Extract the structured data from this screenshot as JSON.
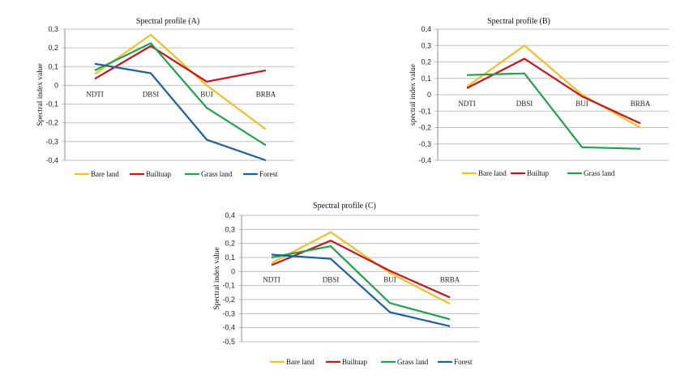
{
  "colors": {
    "Bare land": "#f0be2a",
    "Builtup": "#c4161c",
    "Grass land": "#22a04b",
    "Forest": "#1f5f9e"
  },
  "chart_data": [
    {
      "id": "A",
      "type": "line",
      "title": "Spectral profile (A)",
      "xlabel": "",
      "ylabel": "Spectral index value",
      "categories": [
        "NDTI",
        "DBSI",
        "BUI",
        "BRBA"
      ],
      "ylim": [
        -0.4,
        0.3
      ],
      "yticks": [
        0.3,
        0.2,
        0.1,
        0,
        -0.1,
        -0.2,
        -0.3,
        -0.4
      ],
      "ytick_labels": [
        "0,3",
        "0,2",
        "0,1",
        "0",
        "-0,1",
        "-0,2",
        "-0,3",
        "-0,4"
      ],
      "grid": true,
      "legend_position": "bottom",
      "series": [
        {
          "name": "Bare land",
          "legend_label": "Bare land",
          "values": [
            0.06,
            0.27,
            0.0,
            -0.235
          ]
        },
        {
          "name": "Builtup",
          "legend_label": "Builtuap",
          "values": [
            0.035,
            0.21,
            0.02,
            0.08
          ]
        },
        {
          "name": "Grass land",
          "legend_label": "Grass land",
          "values": [
            0.08,
            0.225,
            -0.12,
            -0.32
          ]
        },
        {
          "name": "Forest",
          "legend_label": "Forest",
          "values": [
            0.115,
            0.065,
            -0.29,
            -0.4
          ]
        }
      ]
    },
    {
      "id": "B",
      "type": "line",
      "title": "Spectral profile (B)",
      "xlabel": "",
      "ylabel": "spectral index value",
      "categories": [
        "NDTI",
        "DBSI",
        "BUI",
        "BRBA"
      ],
      "ylim": [
        -0.4,
        0.4
      ],
      "yticks": [
        0.4,
        0.3,
        0.2,
        0.1,
        0,
        -0.1,
        -0.2,
        -0.3,
        -0.4
      ],
      "ytick_labels": [
        "0,4",
        "0,3",
        "0,2",
        "0,1",
        "0",
        "-0,1",
        "-0,2",
        "-0,3",
        "-0,4"
      ],
      "grid": true,
      "legend_position": "bottom",
      "series": [
        {
          "name": "Bare land",
          "legend_label": "Bare land",
          "values": [
            0.05,
            0.3,
            0.0,
            -0.2
          ]
        },
        {
          "name": "Builtup",
          "legend_label": "Builtup",
          "values": [
            0.04,
            0.22,
            -0.01,
            -0.175
          ]
        },
        {
          "name": "Grass land",
          "legend_label": "Grass land",
          "values": [
            0.12,
            0.13,
            -0.32,
            -0.33
          ]
        }
      ]
    },
    {
      "id": "C",
      "type": "line",
      "title": "Spectral profile (C)",
      "xlabel": "",
      "ylabel": "Spectral index value",
      "categories": [
        "NDTI",
        "DBSI",
        "BUI",
        "BRBA"
      ],
      "ylim": [
        -0.5,
        0.4
      ],
      "yticks": [
        0.4,
        0.3,
        0.2,
        0.1,
        0,
        -0.1,
        -0.2,
        -0.3,
        -0.4,
        -0.5
      ],
      "ytick_labels": [
        "0,4",
        "0,3",
        "0,2",
        "0,1",
        "0",
        "-0,1",
        "-0,2",
        "-0,3",
        "-0,4",
        "-0,5"
      ],
      "grid": true,
      "legend_position": "bottom",
      "series": [
        {
          "name": "Bare land",
          "legend_label": "Bare land",
          "values": [
            0.06,
            0.28,
            -0.01,
            -0.23
          ]
        },
        {
          "name": "Builtup",
          "legend_label": "Builtuap",
          "values": [
            0.045,
            0.22,
            0.005,
            -0.185
          ]
        },
        {
          "name": "Grass land",
          "legend_label": "Grass land",
          "values": [
            0.1,
            0.18,
            -0.225,
            -0.34
          ]
        },
        {
          "name": "Forest",
          "legend_label": "Forest",
          "values": [
            0.12,
            0.09,
            -0.29,
            -0.39
          ]
        }
      ]
    }
  ]
}
